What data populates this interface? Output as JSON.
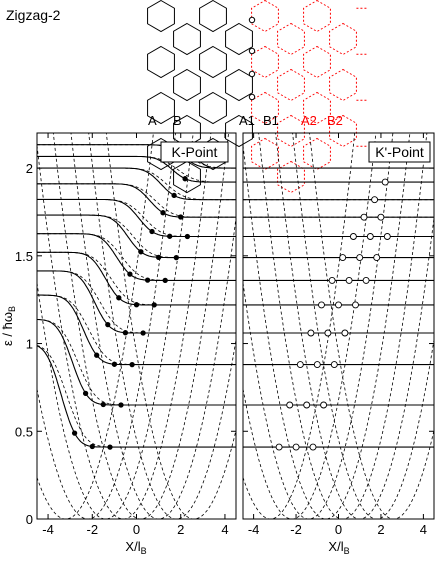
{
  "lattice": {
    "title": "Zigzag-2",
    "labels": [
      "A",
      "B",
      "A1",
      "B1",
      "A2",
      "B2"
    ],
    "colors": {
      "black_lattice": "#000000",
      "red_lattice": "#ff0000"
    }
  },
  "chart_data": [
    {
      "type": "line",
      "panel": "left",
      "annotation": "K-Point",
      "xlabel": "X/l",
      "xlabel_sub": "B",
      "ylabel": "ε / ħω",
      "ylabel_sub": "B",
      "xlim": [
        -4.5,
        4.5
      ],
      "ylim": [
        0,
        2.2
      ],
      "x_ticks": [
        -4,
        -2,
        0,
        2,
        4
      ],
      "x_tick_labels": [
        "-4",
        "-2",
        "0",
        "2",
        "4"
      ],
      "y_ticks": [
        0,
        0.5,
        1,
        1.5,
        2
      ],
      "y_tick_labels": [
        "0",
        "0.5",
        "1",
        "1.5",
        "2"
      ],
      "solid_levels_left": [
        1.0,
        1.414,
        1.732,
        2.0
      ],
      "solid_levels_right": [
        0.41,
        0.65,
        0.88,
        1.06,
        1.22,
        1.36,
        1.49,
        1.61,
        1.72,
        1.82,
        1.92,
        2.0
      ],
      "crossing_marker": "filled",
      "legend": "none"
    },
    {
      "type": "line",
      "panel": "right",
      "annotation": "K'-Point",
      "xlabel": "X/l",
      "xlabel_sub": "B",
      "xlim": [
        -4.5,
        4.5
      ],
      "ylim": [
        0,
        2.2
      ],
      "x_ticks": [
        -4,
        -2,
        0,
        2,
        4
      ],
      "x_tick_labels": [
        "-4",
        "-2",
        "0",
        "2",
        "4"
      ],
      "y_ticks": [
        0,
        0.5,
        1,
        1.5,
        2
      ],
      "solid_levels_left": [
        0,
        1.0,
        1.414,
        1.732,
        2.0
      ],
      "solid_levels_right": [
        0.41,
        0.65,
        0.88,
        1.06,
        1.22,
        1.36,
        1.49,
        1.61,
        1.72,
        1.82,
        1.92,
        2.0
      ],
      "crossing_marker": "open",
      "legend": "none"
    }
  ]
}
